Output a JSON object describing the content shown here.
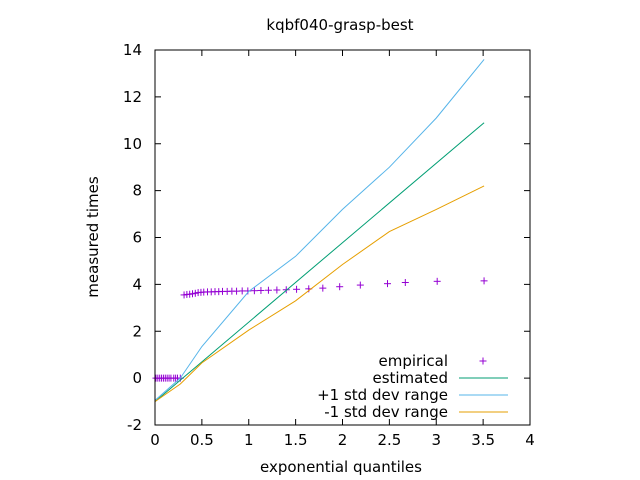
{
  "chart_data": {
    "type": "scatter",
    "title": "kqbf040-grasp-best",
    "xlabel": "exponential quantiles",
    "ylabel": "measured times",
    "xlim": [
      0,
      4
    ],
    "ylim": [
      -2,
      14
    ],
    "xticks": [
      0,
      0.5,
      1,
      1.5,
      2,
      2.5,
      3,
      3.5,
      4
    ],
    "xtick_labels": [
      "0",
      "0.5",
      "1",
      "1.5",
      "2",
      "2.5",
      "3",
      "3.5",
      "4"
    ],
    "yticks": [
      -2,
      0,
      2,
      4,
      6,
      8,
      10,
      12,
      14
    ],
    "ytick_labels": [
      "-2",
      "0",
      "2",
      "4",
      "6",
      "8",
      "10",
      "12",
      "14"
    ],
    "grid": false,
    "legend_position": "bottom-right",
    "series": [
      {
        "name": "empirical",
        "kind": "points",
        "marker": "+",
        "color": "#9400d3",
        "points": [
          [
            0.01,
            0.0
          ],
          [
            0.03,
            0.0
          ],
          [
            0.05,
            0.0
          ],
          [
            0.07,
            0.0
          ],
          [
            0.09,
            0.0
          ],
          [
            0.11,
            0.0
          ],
          [
            0.13,
            0.0
          ],
          [
            0.15,
            0.0
          ],
          [
            0.17,
            0.0
          ],
          [
            0.2,
            0.0
          ],
          [
            0.22,
            0.0
          ],
          [
            0.24,
            0.0
          ],
          [
            0.27,
            0.0
          ],
          [
            0.31,
            3.55
          ],
          [
            0.34,
            3.57
          ],
          [
            0.37,
            3.58
          ],
          [
            0.4,
            3.6
          ],
          [
            0.43,
            3.62
          ],
          [
            0.46,
            3.65
          ],
          [
            0.49,
            3.66
          ],
          [
            0.52,
            3.67
          ],
          [
            0.56,
            3.68
          ],
          [
            0.6,
            3.68
          ],
          [
            0.64,
            3.69
          ],
          [
            0.68,
            3.69
          ],
          [
            0.72,
            3.7
          ],
          [
            0.77,
            3.7
          ],
          [
            0.82,
            3.71
          ],
          [
            0.87,
            3.71
          ],
          [
            0.93,
            3.72
          ],
          [
            0.99,
            3.72
          ],
          [
            1.06,
            3.73
          ],
          [
            1.13,
            3.74
          ],
          [
            1.21,
            3.75
          ],
          [
            1.3,
            3.76
          ],
          [
            1.4,
            3.77
          ],
          [
            1.51,
            3.79
          ],
          [
            1.64,
            3.81
          ],
          [
            1.79,
            3.84
          ],
          [
            1.97,
            3.9
          ],
          [
            2.19,
            3.97
          ],
          [
            2.48,
            4.03
          ],
          [
            2.67,
            4.08
          ],
          [
            3.01,
            4.13
          ],
          [
            3.51,
            4.15
          ]
        ]
      },
      {
        "name": "estimated",
        "kind": "line",
        "color": "#009e73",
        "points": [
          [
            0,
            -1.0
          ],
          [
            3.51,
            10.9
          ]
        ]
      },
      {
        "name": "+1 std dev range",
        "kind": "line",
        "color": "#56b4e9",
        "points": [
          [
            0,
            -0.95
          ],
          [
            0.27,
            0.0
          ],
          [
            0.5,
            1.35
          ],
          [
            1.0,
            3.7
          ],
          [
            1.5,
            5.2
          ],
          [
            2.0,
            7.2
          ],
          [
            2.5,
            9.0
          ],
          [
            3.0,
            11.1
          ],
          [
            3.51,
            13.6
          ]
        ]
      },
      {
        "name": "-1 std dev range",
        "kind": "line",
        "color": "#e69f00",
        "points": [
          [
            0,
            -1.0
          ],
          [
            0.27,
            -0.25
          ],
          [
            0.5,
            0.65
          ],
          [
            1.0,
            2.05
          ],
          [
            1.5,
            3.3
          ],
          [
            2.0,
            4.85
          ],
          [
            2.5,
            6.25
          ],
          [
            3.0,
            7.2
          ],
          [
            3.51,
            8.2
          ]
        ]
      }
    ]
  }
}
